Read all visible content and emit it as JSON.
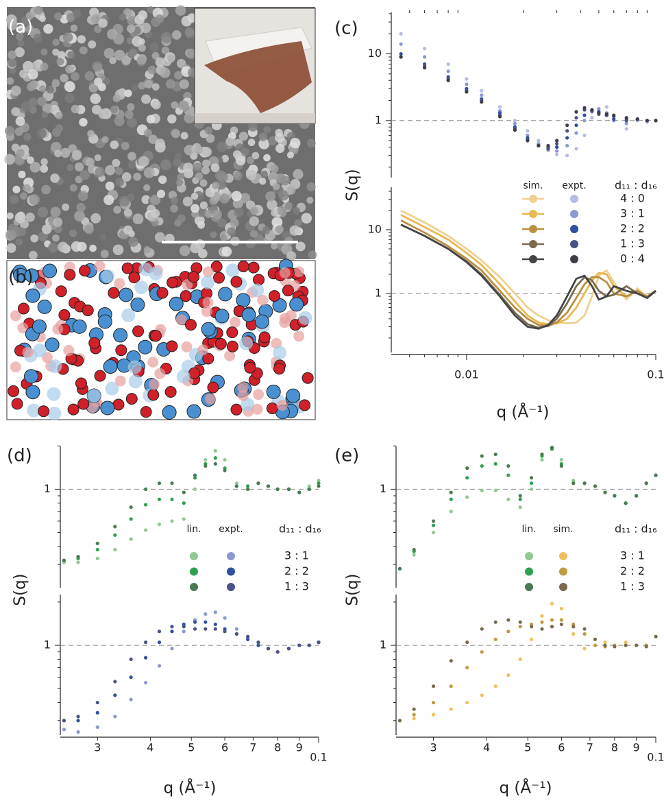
{
  "figure": {
    "a_label": "(a)",
    "b_label": "(b)"
  },
  "chart_data": [
    {
      "type": "scatter",
      "panel_label": "(c)",
      "log_x": true,
      "log_y": true,
      "x": [
        0.0045,
        0.006,
        0.008,
        0.01,
        0.012,
        0.015,
        0.018,
        0.021,
        0.024,
        0.027,
        0.03,
        0.034,
        0.038,
        0.042,
        0.046,
        0.05,
        0.055,
        0.06,
        0.07,
        0.08,
        0.09,
        0.1
      ],
      "xlim": [
        0.004,
        0.1
      ],
      "ylim": [
        0.13,
        45
      ],
      "yticks": [
        1,
        10
      ],
      "yminor": [
        0.2,
        0.3,
        0.4,
        0.5,
        0.6,
        0.7,
        0.8,
        0.9,
        2,
        3,
        4,
        5,
        6,
        7,
        8,
        9,
        20,
        30,
        40
      ],
      "hline": 1,
      "legend_headers": [
        "sim.",
        "expt.",
        "d₁₁ : d₁₆"
      ],
      "series": [
        {
          "name": "4 : 0",
          "color": "#b4bce2",
          "values": [
            20,
            12,
            7,
            4.2,
            2.8,
            1.6,
            1.0,
            0.7,
            0.5,
            0.38,
            0.31,
            0.3,
            0.38,
            0.6,
            1.1,
            1.5,
            1.6,
            1.2,
            0.75,
            1.0,
            0.95,
            1.0
          ]
        },
        {
          "name": "3 : 1",
          "color": "#8c98d2",
          "values": [
            14,
            9,
            5.5,
            3.5,
            2.4,
            1.4,
            0.9,
            0.6,
            0.45,
            0.36,
            0.35,
            0.42,
            0.65,
            1.0,
            1.35,
            1.5,
            1.3,
            1.0,
            0.9,
            1.05,
            1.0,
            1.0
          ]
        },
        {
          "name": "2 : 2",
          "color": "#2f4fa0",
          "values": [
            10,
            7,
            4.5,
            3.0,
            2.1,
            1.3,
            0.8,
            0.55,
            0.42,
            0.38,
            0.4,
            0.55,
            0.85,
            1.2,
            1.4,
            1.35,
            1.2,
            1.05,
            1.0,
            1.05,
            1.0,
            1.0
          ]
        },
        {
          "name": "1 : 3",
          "color": "#4a5288",
          "values": [
            9,
            6.5,
            4.2,
            2.8,
            2.0,
            1.2,
            0.75,
            0.52,
            0.42,
            0.4,
            0.45,
            0.7,
            1.1,
            1.45,
            1.4,
            1.25,
            1.2,
            1.15,
            1.05,
            1.05,
            1.0,
            1.0
          ]
        },
        {
          "name": "0 : 4",
          "color": "#3d3d48",
          "values": [
            9,
            6.2,
            4.0,
            2.7,
            1.9,
            1.15,
            0.72,
            0.5,
            0.42,
            0.42,
            0.5,
            0.85,
            1.35,
            1.55,
            1.45,
            1.3,
            1.25,
            1.2,
            1.1,
            1.05,
            1.0,
            1.0
          ]
        }
      ]
    },
    {
      "type": "line",
      "ylabel": "S(q)",
      "xlabel": "q (Å⁻¹)",
      "log_x": true,
      "log_y": true,
      "x": [
        0.0045,
        0.006,
        0.008,
        0.01,
        0.012,
        0.015,
        0.018,
        0.021,
        0.024,
        0.027,
        0.03,
        0.034,
        0.038,
        0.042,
        0.046,
        0.05,
        0.055,
        0.06,
        0.07,
        0.08,
        0.09,
        0.1
      ],
      "xlim": [
        0.004,
        0.1
      ],
      "ylim": [
        0.11,
        50
      ],
      "xticks": [
        0.01,
        0.1
      ],
      "yticks": [
        1,
        10
      ],
      "xminor": [
        0.005,
        0.006,
        0.007,
        0.008,
        0.009,
        0.02,
        0.03,
        0.04,
        0.05,
        0.06,
        0.07,
        0.08,
        0.09
      ],
      "yminor": [
        0.2,
        0.3,
        0.4,
        0.5,
        0.6,
        0.7,
        0.8,
        0.9,
        2,
        3,
        4,
        5,
        6,
        7,
        8,
        9,
        20,
        30,
        40
      ],
      "hline": 1,
      "series": [
        {
          "color": "#f0d090",
          "values": [
            20,
            13,
            8,
            5,
            3.3,
            1.8,
            1.0,
            0.6,
            0.45,
            0.38,
            0.35,
            0.34,
            0.35,
            0.45,
            0.9,
            1.9,
            2.3,
            1.5,
            0.8,
            1.2,
            0.85,
            1.1
          ]
        },
        {
          "color": "#e8b850",
          "values": [
            17,
            11,
            7,
            4.3,
            2.8,
            1.4,
            0.75,
            0.45,
            0.35,
            0.33,
            0.34,
            0.4,
            0.6,
            1.0,
            1.6,
            2.1,
            2.0,
            1.3,
            0.9,
            1.1,
            0.9,
            1.1
          ]
        },
        {
          "color": "#b89040",
          "values": [
            14,
            9,
            5.5,
            3.5,
            2.3,
            1.1,
            0.6,
            0.4,
            0.32,
            0.31,
            0.35,
            0.5,
            0.85,
            1.4,
            1.8,
            1.8,
            1.5,
            1.0,
            0.9,
            1.1,
            0.9,
            1.1
          ]
        },
        {
          "color": "#7a6a50",
          "values": [
            12,
            8,
            5,
            3.2,
            2.0,
            0.95,
            0.5,
            0.33,
            0.29,
            0.31,
            0.4,
            0.7,
            1.3,
            1.8,
            1.6,
            1.1,
            0.9,
            0.95,
            1.3,
            1.0,
            0.85,
            1.1
          ]
        },
        {
          "color": "#444444",
          "values": [
            12,
            8,
            5,
            3.1,
            1.9,
            0.9,
            0.45,
            0.3,
            0.28,
            0.32,
            0.45,
            0.9,
            1.7,
            1.9,
            1.3,
            0.8,
            0.9,
            1.3,
            1.1,
            1.0,
            0.85,
            1.1
          ]
        }
      ]
    },
    {
      "type": "scatter",
      "panel_label": "(d)",
      "ylabel": "S(q)",
      "log_x": true,
      "log_y": true,
      "x": [
        0.025,
        0.027,
        0.03,
        0.033,
        0.036,
        0.039,
        0.042,
        0.045,
        0.048,
        0.051,
        0.054,
        0.057,
        0.06,
        0.064,
        0.068,
        0.072,
        0.076,
        0.08,
        0.085,
        0.09,
        0.095,
        0.1
      ],
      "xlim": [
        0.0245,
        0.1
      ],
      "ylim": [
        0.2,
        2.05
      ],
      "yticks": [
        1
      ],
      "yminor": [
        0.3,
        0.4,
        0.5,
        0.6,
        0.7,
        0.8,
        0.9,
        2
      ],
      "hline": 1,
      "legend_headers": [
        "lin.",
        "expt.",
        "d₁₁ : d₁₆"
      ],
      "series": [
        {
          "name": "3 : 1",
          "color": "#92c892",
          "values": [
            0.31,
            0.31,
            0.33,
            0.38,
            0.45,
            0.52,
            0.57,
            0.6,
            0.62,
            1.0,
            1.6,
            1.85,
            1.6,
            1.1,
            1.05,
            1.1,
            1.05,
            1.0,
            1.0,
            0.95,
            1.05,
            1.15
          ]
        },
        {
          "name": "2 : 2",
          "color": "#2fa050",
          "values": [
            0.32,
            0.33,
            0.38,
            0.48,
            0.62,
            0.78,
            0.85,
            0.85,
            0.8,
            1.2,
            1.5,
            1.65,
            1.4,
            1.05,
            1.05,
            1.1,
            1.05,
            1.0,
            1.0,
            0.95,
            1.0,
            1.1
          ]
        },
        {
          "name": "1 : 3",
          "color": "#4a7a52",
          "values": [
            0.32,
            0.34,
            0.42,
            0.55,
            0.75,
            1.0,
            1.1,
            1.1,
            0.95,
            1.25,
            1.45,
            1.5,
            1.35,
            1.05,
            1.0,
            1.1,
            1.05,
            1.0,
            1.0,
            0.95,
            1.0,
            1.05
          ]
        }
      ]
    },
    {
      "type": "scatter",
      "xlabel": "q (Å⁻¹)",
      "log_x": true,
      "log_y": true,
      "x": [
        0.025,
        0.027,
        0.03,
        0.033,
        0.036,
        0.039,
        0.042,
        0.045,
        0.048,
        0.051,
        0.054,
        0.057,
        0.06,
        0.064,
        0.068,
        0.072,
        0.076,
        0.08,
        0.085,
        0.09,
        0.095,
        0.1
      ],
      "xlim": [
        0.0245,
        0.1
      ],
      "ylim": [
        0.23,
        2.33
      ],
      "yticks": [
        1
      ],
      "xticks": [
        {
          "value": 0.03,
          "label": "3"
        },
        {
          "value": 0.04,
          "label": "4"
        },
        {
          "value": 0.05,
          "label": "5"
        },
        {
          "value": 0.06,
          "label": "6"
        },
        {
          "value": 0.07,
          "label": "7"
        },
        {
          "value": 0.08,
          "label": "8"
        },
        {
          "value": 0.09,
          "label": "9"
        },
        0.1
      ],
      "yminor": [
        0.3,
        0.4,
        0.5,
        0.6,
        0.7,
        0.8,
        0.9,
        2
      ],
      "hline": 1,
      "series": [
        {
          "color": "#8c98d2",
          "values": [
            0.26,
            0.25,
            0.27,
            0.32,
            0.42,
            0.55,
            0.72,
            0.95,
            1.25,
            1.5,
            1.65,
            1.7,
            1.55,
            1.3,
            1.15,
            1.05,
            0.95,
            0.9,
            0.95,
            1.0,
            1.0,
            1.05
          ]
        },
        {
          "color": "#2f4fa0",
          "values": [
            0.3,
            0.3,
            0.34,
            0.45,
            0.6,
            0.82,
            1.05,
            1.25,
            1.4,
            1.45,
            1.45,
            1.4,
            1.3,
            1.2,
            1.1,
            1.0,
            0.95,
            0.9,
            0.95,
            1.0,
            1.0,
            1.05
          ]
        },
        {
          "color": "#4a5288",
          "values": [
            0.3,
            0.32,
            0.4,
            0.56,
            0.8,
            1.05,
            1.25,
            1.35,
            1.35,
            1.3,
            1.3,
            1.3,
            1.25,
            1.2,
            1.15,
            1.05,
            0.95,
            0.9,
            0.95,
            1.0,
            1.0,
            1.05
          ]
        }
      ]
    },
    {
      "type": "scatter",
      "panel_label": "(e)",
      "ylabel": "S(q)",
      "log_x": true,
      "log_y": true,
      "x": [
        0.025,
        0.027,
        0.03,
        0.033,
        0.036,
        0.039,
        0.042,
        0.045,
        0.048,
        0.051,
        0.054,
        0.057,
        0.06,
        0.064,
        0.068,
        0.072,
        0.076,
        0.08,
        0.085,
        0.09,
        0.095,
        0.1
      ],
      "xlim": [
        0.0245,
        0.1
      ],
      "ylim": [
        0.2,
        2.05
      ],
      "yticks": [
        1
      ],
      "yminor": [
        0.3,
        0.4,
        0.5,
        0.6,
        0.7,
        0.8,
        0.9,
        2
      ],
      "hline": 1,
      "legend_headers": [
        "lin.",
        "sim.",
        "d₁₁ : d₁₆"
      ],
      "series": [
        {
          "name": "3 : 1",
          "color": "#92c892",
          "values": [
            0.28,
            0.35,
            0.5,
            0.7,
            0.88,
            0.98,
            0.98,
            0.85,
            0.75,
            1.0,
            1.6,
            1.9,
            1.6,
            1.15,
            1.1,
            1.05,
            0.95,
            0.9,
            0.8,
            0.9,
            1.1,
            1.25
          ]
        },
        {
          "name": "2 : 2",
          "color": "#2fa050",
          "values": [
            0.28,
            0.37,
            0.56,
            0.85,
            1.2,
            1.45,
            1.5,
            1.25,
            0.85,
            1.1,
            1.7,
            1.9,
            1.5,
            1.1,
            1.1,
            1.05,
            0.95,
            0.9,
            0.8,
            0.9,
            1.1,
            1.25
          ]
        },
        {
          "name": "1 : 3",
          "color": "#4a7a52",
          "values": [
            0.28,
            0.38,
            0.6,
            0.95,
            1.4,
            1.7,
            1.75,
            1.45,
            0.9,
            1.2,
            1.75,
            1.95,
            1.45,
            1.1,
            1.1,
            1.05,
            0.95,
            0.9,
            0.8,
            0.9,
            1.1,
            1.25
          ]
        }
      ]
    },
    {
      "type": "scatter",
      "xlabel": "q (Å⁻¹)",
      "log_x": true,
      "log_y": true,
      "x": [
        0.025,
        0.027,
        0.03,
        0.033,
        0.036,
        0.039,
        0.042,
        0.045,
        0.048,
        0.051,
        0.054,
        0.057,
        0.06,
        0.064,
        0.068,
        0.072,
        0.076,
        0.08,
        0.085,
        0.09,
        0.095,
        0.1
      ],
      "xlim": [
        0.0245,
        0.1
      ],
      "ylim": [
        0.23,
        2.33
      ],
      "yticks": [
        1
      ],
      "xticks": [
        {
          "value": 0.03,
          "label": "3"
        },
        {
          "value": 0.04,
          "label": "4"
        },
        {
          "value": 0.05,
          "label": "5"
        },
        {
          "value": 0.06,
          "label": "6"
        },
        {
          "value": 0.07,
          "label": "7"
        },
        {
          "value": 0.08,
          "label": "8"
        },
        {
          "value": 0.09,
          "label": "9"
        },
        0.1
      ],
      "yminor": [
        0.3,
        0.4,
        0.5,
        0.6,
        0.7,
        0.8,
        0.9,
        2
      ],
      "hline": 1,
      "series": [
        {
          "color": "#f0c060",
          "values": [
            0.3,
            0.31,
            0.33,
            0.36,
            0.4,
            0.45,
            0.52,
            0.62,
            0.8,
            1.1,
            1.6,
            1.95,
            1.8,
            1.2,
            0.95,
            1.0,
            1.05,
            1.0,
            1.05,
            1.0,
            1.0,
            1.15
          ]
        },
        {
          "color": "#c09a40",
          "values": [
            0.3,
            0.33,
            0.4,
            0.52,
            0.7,
            0.9,
            1.1,
            1.25,
            1.35,
            1.4,
            1.45,
            1.5,
            1.5,
            1.4,
            1.2,
            1.0,
            0.98,
            1.0,
            1.0,
            1.0,
            1.0,
            1.15
          ]
        },
        {
          "color": "#7a6a50",
          "values": [
            0.3,
            0.36,
            0.52,
            0.78,
            1.05,
            1.3,
            1.45,
            1.5,
            1.45,
            1.35,
            1.3,
            1.35,
            1.4,
            1.35,
            1.3,
            1.1,
            1.0,
            0.98,
            1.0,
            1.0,
            0.98,
            1.15
          ]
        }
      ]
    }
  ]
}
